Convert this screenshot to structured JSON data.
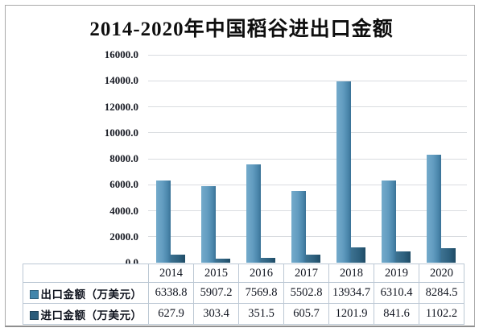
{
  "title": "2014-2020年中国稻谷进出口金额",
  "chart_data": {
    "type": "bar",
    "title": "2014-2020年中国稻谷进出口金额",
    "categories": [
      "2014",
      "2015",
      "2016",
      "2017",
      "2018",
      "2019",
      "2020"
    ],
    "series": [
      {
        "name": "出口金额（万美元）",
        "values": [
          6338.8,
          5907.2,
          7569.8,
          5502.8,
          13934.7,
          6310.4,
          8284.5
        ],
        "color": "#5c97bb",
        "swatch_color": "#4386ab"
      },
      {
        "name": "进口金额（万美元）",
        "values": [
          627.9,
          303.4,
          351.5,
          605.7,
          1201.9,
          841.6,
          1102.2
        ],
        "color": "#2d5f7d",
        "swatch_color": "#2b5c7a"
      }
    ],
    "ylim": [
      0,
      16000
    ],
    "ytick_step": 2000,
    "ytick_labels": [
      "16000.0",
      "14000.0",
      "12000.0",
      "10000.0",
      "8000.0",
      "6000.0",
      "4000.0",
      "2000.0",
      "0.0"
    ],
    "xlabel": "",
    "ylabel": "",
    "grid": true,
    "legend_position": "table-rows-left",
    "data_table_shown": true
  }
}
